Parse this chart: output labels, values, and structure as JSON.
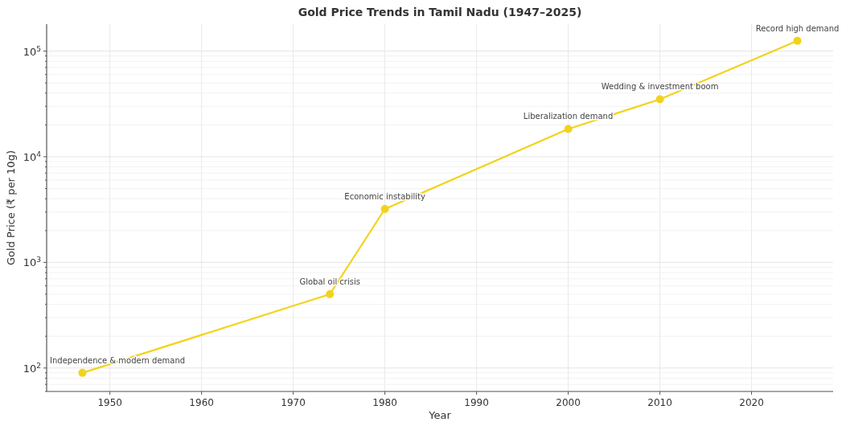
{
  "chart_data": {
    "type": "line",
    "title": "Gold Price Trends in Tamil Nadu (1947–2025)",
    "xlabel": "Year",
    "ylabel": "Gold Price (₹ per 10g)",
    "x": [
      1947,
      1974,
      1980,
      2000,
      2010,
      2025
    ],
    "series": [
      {
        "color": "#f2d31b",
        "values": [
          90,
          500,
          3200,
          18300,
          35000,
          125000
        ]
      }
    ],
    "log": "y",
    "grid": true,
    "marker": "circle",
    "line_style": "solid",
    "xlim": [
      1943.1,
      2028.9
    ],
    "xticks": [
      1950,
      1960,
      1970,
      1980,
      1990,
      2000,
      2010,
      2020
    ],
    "ylim": [
      60,
      180000
    ],
    "yticks": [
      {
        "value": 60,
        "label": null
      },
      {
        "value": 70,
        "label": null
      },
      {
        "value": 80,
        "label": null
      },
      {
        "value": 90,
        "label": null
      },
      {
        "value": 100,
        "label": "10$^{2}$"
      },
      {
        "value": 200,
        "label": null
      },
      {
        "value": 300,
        "label": null
      },
      {
        "value": 400,
        "label": null
      },
      {
        "value": 500,
        "label": null
      },
      {
        "value": 600,
        "label": null
      },
      {
        "value": 700,
        "label": null
      },
      {
        "value": 800,
        "label": null
      },
      {
        "value": 900,
        "label": null
      },
      {
        "value": 1000,
        "label": "10$^{3}$"
      },
      {
        "value": 2000,
        "label": null
      },
      {
        "value": 3000,
        "label": null
      },
      {
        "value": 4000,
        "label": null
      },
      {
        "value": 5000,
        "label": null
      },
      {
        "value": 6000,
        "label": null
      },
      {
        "value": 7000,
        "label": null
      },
      {
        "value": 8000,
        "label": null
      },
      {
        "value": 9000,
        "label": null
      },
      {
        "value": 10000,
        "label": "10$^{4}$"
      },
      {
        "value": 20000,
        "label": null
      },
      {
        "value": 30000,
        "label": null
      },
      {
        "value": 40000,
        "label": null
      },
      {
        "value": 50000,
        "label": null
      },
      {
        "value": 60000,
        "label": null
      },
      {
        "value": 70000,
        "label": null
      },
      {
        "value": 80000,
        "label": null
      },
      {
        "value": 90000,
        "label": null
      },
      {
        "value": 100000,
        "label": "10$^{5}$"
      }
    ],
    "annotations": [
      {
        "text": "Independence & modern demand",
        "x": 1947,
        "y": 90
      },
      {
        "text": "Global oil crisis",
        "x": 1974,
        "y": 500
      },
      {
        "text": "Economic instability",
        "x": 1980,
        "y": 3200
      },
      {
        "text": "Liberalization demand",
        "x": 2000,
        "y": 18300
      },
      {
        "text": "Wedding & investment boom",
        "x": 2010,
        "y": 35000
      },
      {
        "text": "Record high demand",
        "x": 2025,
        "y": 125000
      }
    ]
  }
}
